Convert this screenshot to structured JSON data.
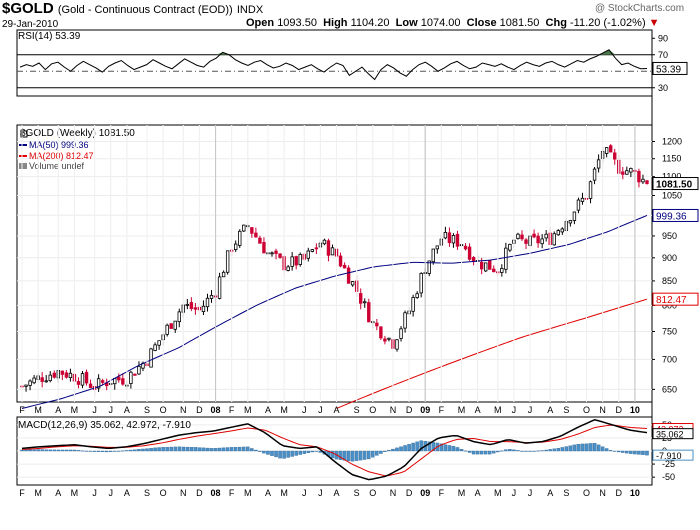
{
  "header": {
    "symbol": "$GOLD",
    "description": "(Gold - Continuous Contract (EOD))",
    "exchange": "INDX",
    "date": "29-Jan-2010",
    "open_label": "Open",
    "open": "1093.50",
    "high_label": "High",
    "high": "1104.20",
    "low_label": "Low",
    "low": "1074.00",
    "close_label": "Close",
    "close": "1081.50",
    "chg_label": "Chg",
    "chg": "-11.20 (-1.02%)",
    "watermark": "@ StockCharts.com"
  },
  "colors": {
    "up": "#000000",
    "down": "#cc0033",
    "ma50": "#000080",
    "ma200": "#e00000",
    "histogram": "#4a8fc5",
    "rsi_fill": "#4a7a4a"
  },
  "rsi": {
    "label": "RSI(14) 53.39",
    "value_tag": "53.39",
    "ticks": [
      "90",
      "70",
      "50",
      "30"
    ],
    "ylim": [
      20,
      100
    ],
    "values": [
      55,
      58,
      56,
      60,
      52,
      59,
      61,
      55,
      50,
      57,
      62,
      58,
      54,
      49,
      56,
      60,
      63,
      57,
      52,
      55,
      58,
      64,
      60,
      56,
      53,
      59,
      65,
      61,
      57,
      55,
      62,
      66,
      73,
      70,
      64,
      60,
      57,
      61,
      63,
      58,
      54,
      56,
      60,
      57,
      52,
      55,
      58,
      53,
      49,
      55,
      60,
      57,
      45,
      50,
      55,
      47,
      40,
      52,
      58,
      54,
      48,
      44,
      52,
      58,
      61,
      56,
      50,
      54,
      59,
      62,
      57,
      53,
      55,
      60,
      58,
      56,
      59,
      55,
      52,
      57,
      61,
      58,
      56,
      60,
      62,
      58,
      55,
      59,
      63,
      61,
      65,
      68,
      72,
      76,
      66,
      58,
      60,
      56,
      53,
      53.39
    ]
  },
  "price": {
    "legend_title": "$GOLD (Weekly) 1081.50",
    "legend_ma50": "MA(50) 999.36",
    "legend_ma200": "MA(200) 812.47",
    "legend_volume": "Volume undef",
    "ma50_tag": "999.36",
    "ma200_tag": "812.47",
    "close_tag": "1081.50",
    "ticks": [
      "1200",
      "1150",
      "1100",
      "1050",
      "1000",
      "950",
      "900",
      "850",
      "800",
      "750",
      "700",
      "650"
    ],
    "log_scale": true
  },
  "chart_data": {
    "type": "line",
    "title": "$GOLD (Weekly) 1081.50",
    "x_axis": [
      "F",
      "M",
      "A",
      "M",
      "J",
      "J",
      "A",
      "S",
      "O",
      "N",
      "D",
      "08",
      "F",
      "M",
      "A",
      "M",
      "J",
      "J",
      "A",
      "S",
      "O",
      "N",
      "D",
      "09",
      "F",
      "M",
      "A",
      "M",
      "J",
      "J",
      "A",
      "S",
      "O",
      "N",
      "D",
      "10"
    ],
    "close_anchor_weeks": [
      0,
      4,
      9,
      13,
      18,
      22,
      26,
      31,
      35,
      40,
      44,
      48,
      52,
      56,
      61,
      65,
      70,
      74,
      78,
      83,
      87,
      92,
      96,
      100,
      104,
      109,
      113,
      118,
      122,
      126,
      131,
      135,
      140,
      144,
      148,
      152,
      155
    ],
    "close_anchors": [
      655,
      668,
      680,
      672,
      655,
      665,
      668,
      700,
      745,
      800,
      790,
      830,
      925,
      975,
      910,
      885,
      895,
      935,
      905,
      830,
      765,
      730,
      790,
      880,
      945,
      935,
      890,
      875,
      940,
      935,
      945,
      990,
      1050,
      1175,
      1125,
      1110,
      1081.5
    ],
    "ma50_anchors": [
      620,
      635,
      655,
      690,
      720,
      760,
      800,
      835,
      860,
      880,
      890,
      888,
      895,
      910,
      930,
      960,
      999.36
    ],
    "ma200_anchors": [
      620,
      660,
      700,
      740,
      775,
      812.47
    ],
    "ylim": [
      630,
      1250
    ],
    "series": [
      {
        "name": "MA(50) 999.36",
        "last": 999.36
      },
      {
        "name": "MA(200) 812.47",
        "last": 812.47
      }
    ]
  },
  "macd": {
    "label": "MACD(12,26,9) 35.062, 42.972, -7.910",
    "tag1": "42.972",
    "tag2": "35.062",
    "tag3": "-7.910",
    "ticks": [
      "50",
      "25",
      "0",
      "-25",
      "-50"
    ],
    "ylim": [
      -65,
      65
    ],
    "macd_anchors": [
      5,
      8,
      10,
      12,
      8,
      5,
      8,
      14,
      22,
      30,
      35,
      38,
      45,
      52,
      35,
      10,
      5,
      8,
      -20,
      -45,
      -55,
      -48,
      -30,
      5,
      25,
      30,
      18,
      12,
      22,
      15,
      18,
      28,
      45,
      60,
      50,
      40,
      35.062
    ],
    "signal_anchors": [
      3,
      5,
      8,
      10,
      9,
      7,
      7,
      10,
      15,
      22,
      28,
      33,
      38,
      44,
      40,
      25,
      12,
      8,
      -5,
      -25,
      -40,
      -48,
      -40,
      -15,
      10,
      22,
      24,
      18,
      18,
      16,
      17,
      22,
      32,
      45,
      50,
      45,
      42.972
    ]
  }
}
